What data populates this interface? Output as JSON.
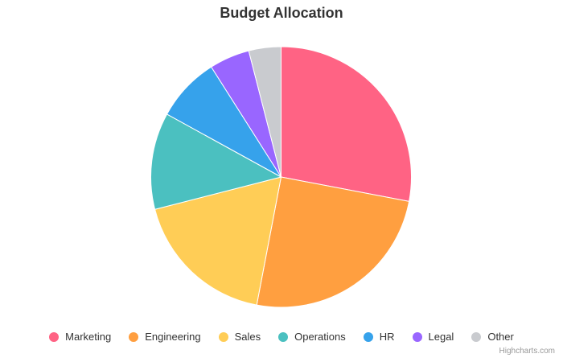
{
  "chart": {
    "title": "Budget Allocation",
    "credits": "Highcharts.com"
  },
  "legend": {
    "items": [
      {
        "label": "Marketing",
        "color": "#ff6384"
      },
      {
        "label": "Engineering",
        "color": "#ff9f40"
      },
      {
        "label": "Sales",
        "color": "#ffcd56"
      },
      {
        "label": "Operations",
        "color": "#4bc0c0"
      },
      {
        "label": "HR",
        "color": "#36a2eb"
      },
      {
        "label": "Legal",
        "color": "#9966ff"
      },
      {
        "label": "Other",
        "color": "#c9cbcf"
      }
    ]
  },
  "chart_data": {
    "type": "pie",
    "title": "Budget Allocation",
    "categories": [
      "Marketing",
      "Engineering",
      "Sales",
      "Operations",
      "HR",
      "Legal",
      "Other"
    ],
    "values": [
      28,
      25,
      18,
      12,
      8,
      5,
      4
    ],
    "colors": [
      "#ff6384",
      "#ff9f40",
      "#ffcd56",
      "#4bc0c0",
      "#36a2eb",
      "#9966ff",
      "#c9cbcf"
    ],
    "unit": "%",
    "legend_position": "bottom",
    "start_angle": 0,
    "direction": "clockwise"
  }
}
